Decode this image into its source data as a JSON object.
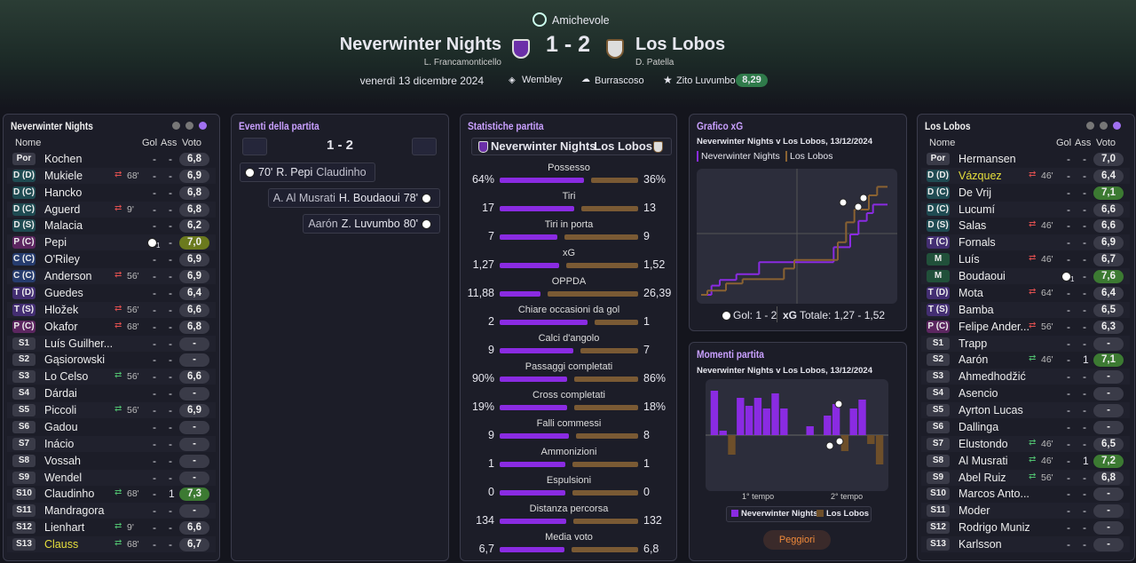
{
  "header": {
    "competition": "Amichevole",
    "home": "Neverwinter Nights",
    "home_manager": "L. Francamonticello",
    "score": "1 - 2",
    "away": "Los Lobos",
    "away_manager": "D. Patella",
    "date": "venerdì 13 dicembre 2024",
    "stadium": "Wembley",
    "weather": "Burrascoso",
    "potm": "Zito Luvumbo",
    "potm_rating": "8,29"
  },
  "home_panel": {
    "title": "Neverwinter Nights",
    "columns": [
      "Nome",
      "Gol",
      "Ass",
      "Voto"
    ],
    "players": [
      {
        "pos": "Por",
        "name": "Kochen",
        "gol": "-",
        "ass": "-",
        "voto": "6,8"
      },
      {
        "pos": "D (D)",
        "name": "Mukiele",
        "sub_out": "68'",
        "gol": "-",
        "ass": "-",
        "voto": "6,9"
      },
      {
        "pos": "D (C)",
        "name": "Hancko",
        "gol": "-",
        "ass": "-",
        "voto": "6,8"
      },
      {
        "pos": "D (C)",
        "name": "Aguerd",
        "sub_out": "9'",
        "gol": "-",
        "ass": "-",
        "voto": "6,8"
      },
      {
        "pos": "D (S)",
        "name": "Malacia",
        "gol": "-",
        "ass": "-",
        "voto": "6,2"
      },
      {
        "pos": "P (C)",
        "name": "Pepi",
        "gol": "1",
        "ass": "-",
        "voto": "7,0",
        "voto_color": "#6b7a1e"
      },
      {
        "pos": "C (C)",
        "name": "O'Riley",
        "gol": "-",
        "ass": "-",
        "voto": "6,9"
      },
      {
        "pos": "C (C)",
        "name": "Anderson",
        "sub_out": "56'",
        "gol": "-",
        "ass": "-",
        "voto": "6,9"
      },
      {
        "pos": "T (D)",
        "name": "Guedes",
        "gol": "-",
        "ass": "-",
        "voto": "6,4"
      },
      {
        "pos": "T (S)",
        "name": "Hložek",
        "sub_out": "56'",
        "gol": "-",
        "ass": "-",
        "voto": "6,6"
      },
      {
        "pos": "P (C)",
        "name": "Okafor",
        "sub_out": "68'",
        "gol": "-",
        "ass": "-",
        "voto": "6,8"
      },
      {
        "pos": "S1",
        "name": "Luís Guilher...",
        "gol": "-",
        "ass": "-",
        "voto": "-"
      },
      {
        "pos": "S2",
        "name": "Gąsiorowski",
        "gol": "-",
        "ass": "-",
        "voto": "-"
      },
      {
        "pos": "S3",
        "name": "Lo Celso",
        "sub_in": "56'",
        "gol": "-",
        "ass": "-",
        "voto": "6,6"
      },
      {
        "pos": "S4",
        "name": "Dárdai",
        "gol": "-",
        "ass": "-",
        "voto": "-"
      },
      {
        "pos": "S5",
        "name": "Piccoli",
        "sub_in": "56'",
        "gol": "-",
        "ass": "-",
        "voto": "6,9"
      },
      {
        "pos": "S6",
        "name": "Gadou",
        "gol": "-",
        "ass": "-",
        "voto": "-"
      },
      {
        "pos": "S7",
        "name": "Inácio",
        "gol": "-",
        "ass": "-",
        "voto": "-"
      },
      {
        "pos": "S8",
        "name": "Vossah",
        "gol": "-",
        "ass": "-",
        "voto": "-"
      },
      {
        "pos": "S9",
        "name": "Wendel",
        "gol": "-",
        "ass": "-",
        "voto": "-"
      },
      {
        "pos": "S10",
        "name": "Claudinho",
        "sub_in": "68'",
        "gol": "-",
        "ass": "1",
        "voto": "7,3",
        "voto_color": "#3c7a32"
      },
      {
        "pos": "S11",
        "name": "Mandragora",
        "gol": "-",
        "ass": "-",
        "voto": "-"
      },
      {
        "pos": "S12",
        "name": "Lienhart",
        "sub_in": "9'",
        "gol": "-",
        "ass": "-",
        "voto": "6,6"
      },
      {
        "pos": "S13",
        "name": "Clauss",
        "name_color": "#e6df3c",
        "sub_in": "68'",
        "gol": "-",
        "ass": "-",
        "voto": "6,7"
      }
    ]
  },
  "events": {
    "title": "Eventi della partita",
    "score": "1 - 2",
    "items": [
      {
        "side": "home",
        "minute": "70'",
        "scorer": "R. Pepi",
        "assist": "Claudinho"
      },
      {
        "side": "away",
        "minute": "78'",
        "scorer": "H. Boudaoui",
        "assist": "A. Al Musrati"
      },
      {
        "side": "away",
        "minute": "80'",
        "scorer": "Z. Luvumbo",
        "assist": "Aarón"
      }
    ]
  },
  "stats": {
    "title": "Statistiche partita",
    "home": "Neverwinter Nights",
    "away": "Los Lobos",
    "home_color": "#8a2be2",
    "away_color": "#7a5a34",
    "rows": [
      {
        "label": "Possesso",
        "home": 64,
        "away": 36,
        "home_label": "64%",
        "away_label": "36%"
      },
      {
        "label": "Tiri",
        "home": 17,
        "away": 13
      },
      {
        "label": "Tiri in porta",
        "home": 7,
        "away": 9
      },
      {
        "label": "xG",
        "home": 1.27,
        "away": 1.52,
        "home_label": "1,27",
        "away_label": "1,52"
      },
      {
        "label": "OPPDA",
        "home": 11.88,
        "away": 26.39,
        "home_label": "11,88",
        "away_label": "26,39"
      },
      {
        "label": "Chiare occasioni da gol",
        "home": 2,
        "away": 1
      },
      {
        "label": "Calci d'angolo",
        "home": 9,
        "away": 7
      },
      {
        "label": "Passaggi completati",
        "home": 90,
        "away": 86,
        "home_label": "90%",
        "away_label": "86%"
      },
      {
        "label": "Cross completati",
        "home": 19,
        "away": 18,
        "home_label": "19%",
        "away_label": "18%"
      },
      {
        "label": "Falli commessi",
        "home": 9,
        "away": 8
      },
      {
        "label": "Ammonizioni",
        "home": 1,
        "away": 1
      },
      {
        "label": "Espulsioni",
        "home": 0,
        "away": 0
      },
      {
        "label": "Distanza percorsa",
        "home": 134,
        "away": 132
      },
      {
        "label": "Media voto",
        "home": 6.7,
        "away": 6.8,
        "home_label": "6,7",
        "away_label": "6,8"
      }
    ]
  },
  "xg_chart": {
    "title": "Grafico xG",
    "subtitle": "Neverwinter Nights v Los Lobos, 13/12/2024",
    "series": [
      {
        "name": "Neverwinter Nights",
        "color": "#8a2be2",
        "minutes": [
          5,
          9,
          17,
          28,
          64,
          72,
          76,
          80,
          83
        ],
        "xg": [
          0.13,
          0.08,
          0.08,
          0.17,
          0.21,
          0.18,
          0.19,
          0.11,
          0.12
        ]
      },
      {
        "name": "Los Lobos",
        "color": "#8a6232",
        "minutes": [
          3,
          12,
          20,
          40,
          45,
          66,
          70,
          74,
          81,
          85
        ],
        "xg": [
          0.06,
          0.1,
          0.06,
          0.15,
          0.12,
          0.25,
          0.28,
          0.18,
          0.2,
          0.12
        ]
      }
    ],
    "goals": "Gol: 1 - 2",
    "xg_label": "xG",
    "xg_total": "Totale: 1,27 - 1,52"
  },
  "momentum": {
    "title": "Momenti partita",
    "subtitle": "Neverwinter Nights v Los Lobos, 13/12/2024",
    "values": [
      50,
      5,
      -22,
      42,
      33,
      42,
      30,
      47,
      30,
      0,
      0,
      10,
      0,
      22,
      35,
      -18,
      30,
      40,
      -10,
      -33
    ],
    "home_color": "#8a2be2",
    "away_color": "#6e4f2a",
    "first_half": "1° tempo",
    "second_half": "2° tempo",
    "legend": [
      "Neverwinter Nights",
      "Los Lobos"
    ],
    "button": "Peggiori"
  },
  "away_panel": {
    "title": "Los Lobos",
    "columns": [
      "Nome",
      "Gol",
      "Ass",
      "Voto"
    ],
    "players": [
      {
        "pos": "Por",
        "name": "Hermansen",
        "gol": "-",
        "ass": "-",
        "voto": "7,0"
      },
      {
        "pos": "D (D)",
        "name": "Vázquez",
        "name_color": "#e6df3c",
        "sub_out": "46'",
        "gol": "-",
        "ass": "-",
        "voto": "6,4"
      },
      {
        "pos": "D (C)",
        "name": "De Vrij",
        "gol": "-",
        "ass": "-",
        "voto": "7,1",
        "voto_color": "#3c7a32"
      },
      {
        "pos": "D (C)",
        "name": "Lucumí",
        "gol": "-",
        "ass": "-",
        "voto": "6,6"
      },
      {
        "pos": "D (S)",
        "name": "Salas",
        "sub_out": "46'",
        "gol": "-",
        "ass": "-",
        "voto": "6,6"
      },
      {
        "pos": "T (C)",
        "name": "Fornals",
        "gol": "-",
        "ass": "-",
        "voto": "6,9"
      },
      {
        "pos": "M",
        "name": "Luís",
        "sub_out": "46'",
        "gol": "-",
        "ass": "-",
        "voto": "6,7"
      },
      {
        "pos": "M",
        "name": "Boudaoui",
        "gol": "1",
        "ass": "-",
        "voto": "7,6",
        "voto_color": "#3c7a32"
      },
      {
        "pos": "T (D)",
        "name": "Mota",
        "sub_out": "64'",
        "gol": "-",
        "ass": "-",
        "voto": "6,4"
      },
      {
        "pos": "T (S)",
        "name": "Bamba",
        "gol": "-",
        "ass": "-",
        "voto": "6,5"
      },
      {
        "pos": "P (C)",
        "name": "Felipe Ander...",
        "sub_out": "56'",
        "gol": "-",
        "ass": "-",
        "voto": "6,3"
      },
      {
        "pos": "S1",
        "name": "Trapp",
        "gol": "-",
        "ass": "-",
        "voto": "-"
      },
      {
        "pos": "S2",
        "name": "Aarón",
        "sub_in": "46'",
        "gol": "-",
        "ass": "1",
        "voto": "7,1",
        "voto_color": "#3c7a32"
      },
      {
        "pos": "S3",
        "name": "Ahmedhodžić",
        "gol": "-",
        "ass": "-",
        "voto": "-"
      },
      {
        "pos": "S4",
        "name": "Asencio",
        "gol": "-",
        "ass": "-",
        "voto": "-"
      },
      {
        "pos": "S5",
        "name": "Ayrton Lucas",
        "gol": "-",
        "ass": "-",
        "voto": "-"
      },
      {
        "pos": "S6",
        "name": "Dallinga",
        "gol": "-",
        "ass": "-",
        "voto": "-"
      },
      {
        "pos": "S7",
        "name": "Elustondo",
        "sub_in": "46'",
        "gol": "-",
        "ass": "-",
        "voto": "6,5"
      },
      {
        "pos": "S8",
        "name": "Al Musrati",
        "sub_in": "46'",
        "gol": "-",
        "ass": "1",
        "voto": "7,2",
        "voto_color": "#3c7a32"
      },
      {
        "pos": "S9",
        "name": "Abel Ruiz",
        "sub_in": "56'",
        "gol": "-",
        "ass": "-",
        "voto": "6,8"
      },
      {
        "pos": "S10",
        "name": "Marcos Anto...",
        "gol": "-",
        "ass": "-",
        "voto": "-"
      },
      {
        "pos": "S11",
        "name": "Moder",
        "gol": "-",
        "ass": "-",
        "voto": "-"
      },
      {
        "pos": "S12",
        "name": "Rodrigo Muniz",
        "gol": "-",
        "ass": "-",
        "voto": "-"
      },
      {
        "pos": "S13",
        "name": "Karlsson",
        "gol": "-",
        "ass": "-",
        "voto": "-"
      }
    ]
  }
}
